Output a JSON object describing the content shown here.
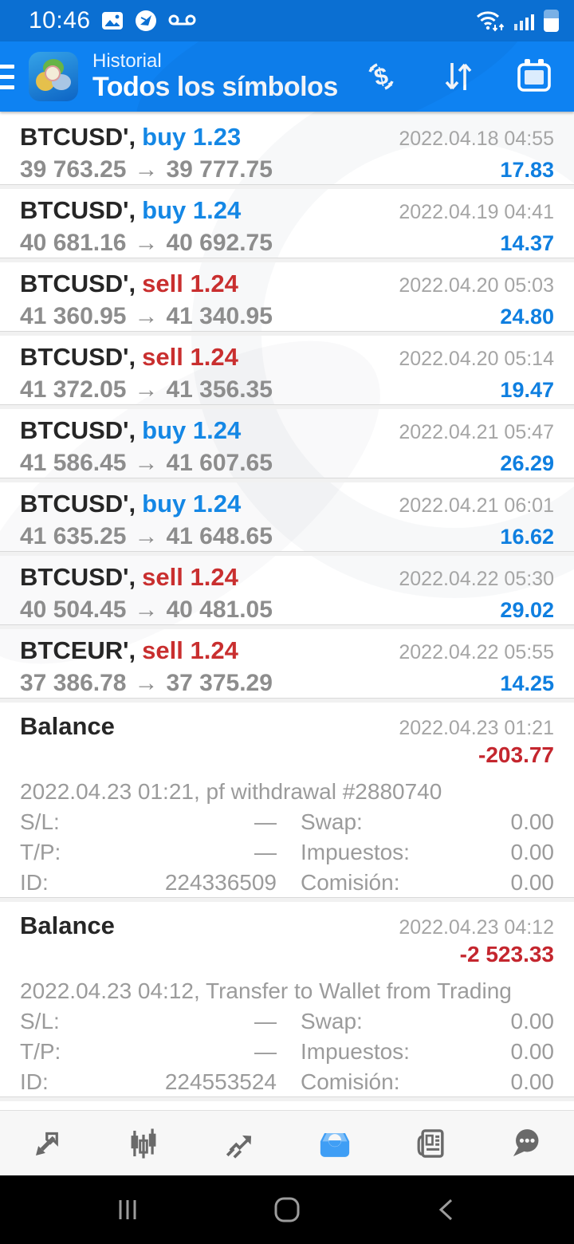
{
  "colors": {
    "status_blue": "#0b6fd2",
    "header_blue": "#0e82f2",
    "buy": "#1487e5",
    "sell": "#c92f2f",
    "pos": "#0f7fe0",
    "neg": "#c4262e",
    "dark": "#262626",
    "active_nav": "#3f9ef5",
    "toolbar_icon": "#6a6a6a"
  },
  "status_bar": {
    "time": "10:46",
    "left_icons": [
      "gallery-icon",
      "browser-badge-icon",
      "voicemail-icon"
    ],
    "right_icons": [
      "wifi-icon",
      "signal-icon",
      "battery-icon"
    ]
  },
  "header": {
    "title": "Historial",
    "subtitle": "Todos los símbolos",
    "action_icons": [
      "deal-type-filter-icon",
      "sort-icon",
      "calendar-icon"
    ]
  },
  "labels": {
    "arrow": "→",
    "sl": "S/L:",
    "tp": "T/P:",
    "id": "ID:",
    "swap": "Swap:",
    "taxes": "Impuestos:",
    "commission": "Comisión:"
  },
  "trades": [
    {
      "symbol": "BTCUSD',",
      "operation": "buy 1.23",
      "type": "buy",
      "open": "39 763.25",
      "close": "39 777.75",
      "datetime": "2022.04.18 04:55",
      "profit": "17.83"
    },
    {
      "symbol": "BTCUSD',",
      "operation": "buy 1.24",
      "type": "buy",
      "open": "40 681.16",
      "close": "40 692.75",
      "datetime": "2022.04.19 04:41",
      "profit": "14.37"
    },
    {
      "symbol": "BTCUSD',",
      "operation": "sell 1.24",
      "type": "sell",
      "open": "41 360.95",
      "close": "41 340.95",
      "datetime": "2022.04.20 05:03",
      "profit": "24.80"
    },
    {
      "symbol": "BTCUSD',",
      "operation": "sell 1.24",
      "type": "sell",
      "open": "41 372.05",
      "close": "41 356.35",
      "datetime": "2022.04.20 05:14",
      "profit": "19.47"
    },
    {
      "symbol": "BTCUSD',",
      "operation": "buy 1.24",
      "type": "buy",
      "open": "41 586.45",
      "close": "41 607.65",
      "datetime": "2022.04.21 05:47",
      "profit": "26.29"
    },
    {
      "symbol": "BTCUSD',",
      "operation": "buy 1.24",
      "type": "buy",
      "open": "41 635.25",
      "close": "41 648.65",
      "datetime": "2022.04.21 06:01",
      "profit": "16.62"
    },
    {
      "symbol": "BTCUSD',",
      "operation": "sell 1.24",
      "type": "sell",
      "open": "40 504.45",
      "close": "40 481.05",
      "datetime": "2022.04.22 05:30",
      "profit": "29.02"
    },
    {
      "symbol": "BTCEUR',",
      "operation": "sell 1.24",
      "type": "sell",
      "open": "37 386.78",
      "close": "37 375.29",
      "datetime": "2022.04.22 05:55",
      "profit": "14.25"
    }
  ],
  "balances": [
    {
      "title": "Balance",
      "datetime": "2022.04.23 01:21",
      "amount": "-203.77",
      "comment": "2022.04.23 01:21, pf withdrawal #2880740",
      "sl": "—",
      "tp": "—",
      "id": "224336509",
      "swap": "0.00",
      "taxes": "0.00",
      "commission": "0.00"
    },
    {
      "title": "Balance",
      "datetime": "2022.04.23 04:12",
      "amount": "-2 523.33",
      "comment": "2022.04.23 04:12, Transfer to Wallet from Trading",
      "sl": "—",
      "tp": "—",
      "id": "224553524",
      "swap": "0.00",
      "taxes": "0.00",
      "commission": "0.00"
    }
  ],
  "bottom_nav": [
    "quotes-icon",
    "charts-icon",
    "trade-icon",
    "history-icon",
    "news-icon",
    "messages-icon"
  ],
  "bottom_nav_active": "history-icon",
  "android_nav": [
    "recents-icon",
    "home-icon",
    "back-icon"
  ]
}
